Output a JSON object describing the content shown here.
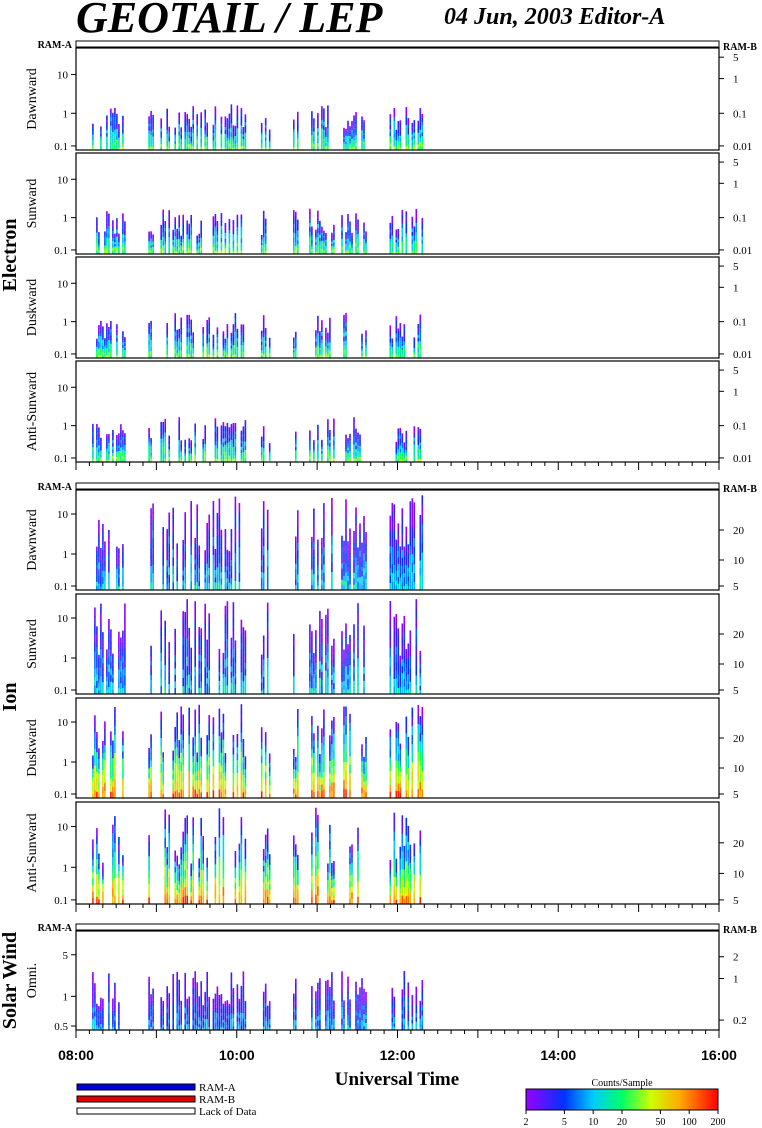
{
  "header": {
    "title": "GEOTAIL / LEP",
    "date": "04 Jun, 2003   Editor-A"
  },
  "chart_data": {
    "type": "heatmap",
    "xlabel": "Universal Time",
    "x_ticks": [
      "08:00",
      "10:00",
      "12:00",
      "14:00",
      "16:00"
    ],
    "xlim_hours": [
      8,
      16
    ],
    "ram_labels": {
      "left": "RAM-A",
      "right": "RAM-B"
    },
    "groups": [
      {
        "name": "Electron",
        "panels": [
          {
            "name": "Dawnward",
            "left_ticks": [
              "10",
              "1",
              "0.1"
            ],
            "right_ticks": [
              "5",
              "1",
              "0.1",
              "0.01"
            ]
          },
          {
            "name": "Sunward",
            "left_ticks": [
              "10",
              "1",
              "0.1"
            ],
            "right_ticks": [
              "5",
              "1",
              "0.1",
              "0.01"
            ]
          },
          {
            "name": "Duskward",
            "left_ticks": [
              "10",
              "1",
              "0.1"
            ],
            "right_ticks": [
              "5",
              "1",
              "0.1",
              "0.01"
            ]
          },
          {
            "name": "Anti-Sunward",
            "left_ticks": [
              "10",
              "1",
              "0.1"
            ],
            "right_ticks": [
              "5",
              "1",
              "0.1",
              "0.01"
            ]
          }
        ]
      },
      {
        "name": "Ion",
        "panels": [
          {
            "name": "Dawnward",
            "left_ticks": [
              "10",
              "1",
              "0.1"
            ],
            "right_ticks": [
              "20",
              "10",
              "5"
            ]
          },
          {
            "name": "Sunward",
            "left_ticks": [
              "10",
              "1",
              "0.1"
            ],
            "right_ticks": [
              "20",
              "10",
              "5"
            ]
          },
          {
            "name": "Duskward",
            "left_ticks": [
              "10",
              "1",
              "0.1"
            ],
            "right_ticks": [
              "20",
              "10",
              "5"
            ]
          },
          {
            "name": "Anti-Sunward",
            "left_ticks": [
              "10",
              "1",
              "0.1"
            ],
            "right_ticks": [
              "20",
              "10",
              "5"
            ]
          }
        ]
      },
      {
        "name": "Solar Wind",
        "panels": [
          {
            "name": "Omni.",
            "left_ticks": [
              "5",
              "1",
              "0.5"
            ],
            "right_ticks": [
              "2",
              "1",
              "0.2"
            ]
          }
        ]
      }
    ],
    "data_intervals_hours": [
      [
        8.2,
        8.6
      ],
      [
        8.9,
        8.95
      ],
      [
        9.05,
        9.15
      ],
      [
        9.2,
        9.65
      ],
      [
        9.7,
        10.1
      ],
      [
        10.3,
        10.4
      ],
      [
        10.7,
        10.75
      ],
      [
        10.9,
        11.2
      ],
      [
        11.3,
        11.6
      ],
      [
        11.9,
        12.3
      ]
    ],
    "legend": [
      {
        "label": "RAM-A",
        "color": "#0000dd"
      },
      {
        "label": "RAM-B",
        "color": "#dd0000"
      },
      {
        "label": "Lack of Data",
        "color": "#ffffff"
      }
    ],
    "colorbar": {
      "label": "Counts/Sample",
      "ticks": [
        "2",
        "5",
        "10",
        "20",
        "50",
        "100",
        "200"
      ]
    }
  }
}
